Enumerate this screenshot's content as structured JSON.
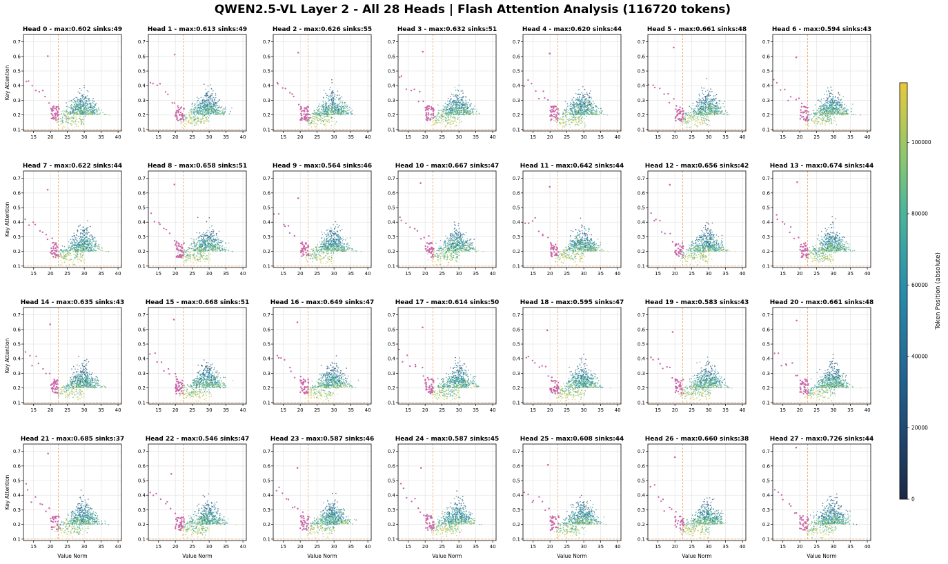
{
  "figure": {
    "title": "QWEN2.5-VL Layer 2 - All 28 Heads | Flash Attention Analysis (116720 tokens)"
  },
  "chart_data": {
    "type": "scatter",
    "layout": "4 rows x 7 columns of scatter subplots",
    "xlabel": "Value Norm",
    "ylabel": "Key Attention",
    "xlim": [
      12,
      41
    ],
    "ylim": [
      0.09,
      0.75
    ],
    "x_ticks": [
      "15",
      "20",
      "25",
      "30",
      "35",
      "40"
    ],
    "y_ticks": [
      "0.1",
      "0.2",
      "0.3",
      "0.4",
      "0.5",
      "0.6",
      "0.7"
    ],
    "grid": true,
    "reference_lines": {
      "vertical_x": 22.3,
      "horizontal_y": 0.1,
      "color": "#f0a060"
    },
    "sink_color": "#cc66aa",
    "colorbar": {
      "label": "Token Position (absolute)",
      "ticks": [
        "0",
        "20000",
        "40000",
        "60000",
        "80000",
        "100000"
      ],
      "tick_values": [
        0,
        20000,
        40000,
        60000,
        80000,
        100000
      ],
      "range": [
        0,
        116720
      ],
      "colormap": "viridis-like (dark navy to yellow)"
    },
    "heads": [
      {
        "head": 0,
        "title": "Head 0 - max:0.602 sinks:49",
        "max": 0.602,
        "sinks": 49
      },
      {
        "head": 1,
        "title": "Head 1 - max:0.613 sinks:49",
        "max": 0.613,
        "sinks": 49
      },
      {
        "head": 2,
        "title": "Head 2 - max:0.626 sinks:55",
        "max": 0.626,
        "sinks": 55
      },
      {
        "head": 3,
        "title": "Head 3 - max:0.632 sinks:51",
        "max": 0.632,
        "sinks": 51
      },
      {
        "head": 4,
        "title": "Head 4 - max:0.620 sinks:44",
        "max": 0.62,
        "sinks": 44
      },
      {
        "head": 5,
        "title": "Head 5 - max:0.661 sinks:48",
        "max": 0.661,
        "sinks": 48
      },
      {
        "head": 6,
        "title": "Head 6 - max:0.594 sinks:43",
        "max": 0.594,
        "sinks": 43
      },
      {
        "head": 7,
        "title": "Head 7 - max:0.622 sinks:44",
        "max": 0.622,
        "sinks": 44
      },
      {
        "head": 8,
        "title": "Head 8 - max:0.658 sinks:51",
        "max": 0.658,
        "sinks": 51
      },
      {
        "head": 9,
        "title": "Head 9 - max:0.564 sinks:46",
        "max": 0.564,
        "sinks": 46
      },
      {
        "head": 10,
        "title": "Head 10 - max:0.667 sinks:47",
        "max": 0.667,
        "sinks": 47
      },
      {
        "head": 11,
        "title": "Head 11 - max:0.642 sinks:44",
        "max": 0.642,
        "sinks": 44
      },
      {
        "head": 12,
        "title": "Head 12 - max:0.656 sinks:42",
        "max": 0.656,
        "sinks": 42
      },
      {
        "head": 13,
        "title": "Head 13 - max:0.674 sinks:44",
        "max": 0.674,
        "sinks": 44
      },
      {
        "head": 14,
        "title": "Head 14 - max:0.635 sinks:43",
        "max": 0.635,
        "sinks": 43
      },
      {
        "head": 15,
        "title": "Head 15 - max:0.668 sinks:51",
        "max": 0.668,
        "sinks": 51
      },
      {
        "head": 16,
        "title": "Head 16 - max:0.649 sinks:47",
        "max": 0.649,
        "sinks": 47
      },
      {
        "head": 17,
        "title": "Head 17 - max:0.614 sinks:50",
        "max": 0.614,
        "sinks": 50
      },
      {
        "head": 18,
        "title": "Head 18 - max:0.595 sinks:47",
        "max": 0.595,
        "sinks": 47
      },
      {
        "head": 19,
        "title": "Head 19 - max:0.583 sinks:43",
        "max": 0.583,
        "sinks": 43
      },
      {
        "head": 20,
        "title": "Head 20 - max:0.661 sinks:48",
        "max": 0.661,
        "sinks": 48
      },
      {
        "head": 21,
        "title": "Head 21 - max:0.685 sinks:37",
        "max": 0.685,
        "sinks": 37
      },
      {
        "head": 22,
        "title": "Head 22 - max:0.546 sinks:47",
        "max": 0.546,
        "sinks": 47
      },
      {
        "head": 23,
        "title": "Head 23 - max:0.587 sinks:46",
        "max": 0.587,
        "sinks": 46
      },
      {
        "head": 24,
        "title": "Head 24 - max:0.587 sinks:45",
        "max": 0.587,
        "sinks": 45
      },
      {
        "head": 25,
        "title": "Head 25 - max:0.608 sinks:44",
        "max": 0.608,
        "sinks": 44
      },
      {
        "head": 26,
        "title": "Head 26 - max:0.660 sinks:38",
        "max": 0.66,
        "sinks": 38
      },
      {
        "head": 27,
        "title": "Head 27 - max:0.726 sinks:44",
        "max": 0.726,
        "sinks": 44
      }
    ]
  }
}
